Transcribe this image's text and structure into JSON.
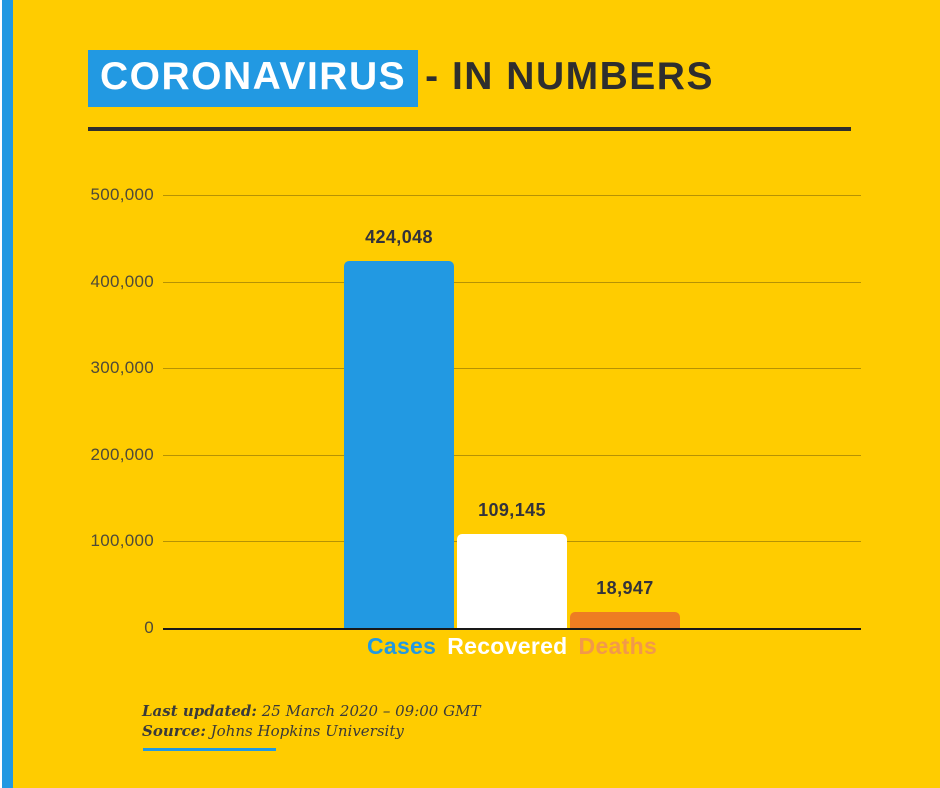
{
  "colors": {
    "background": "#FFCC00",
    "accent_blue": "#2299E2",
    "bar_white": "#FFFFFF",
    "bar_orange": "#EE7D22",
    "legend_orange": "#F2994A",
    "text_dark": "#2E2E2E",
    "tick_text": "#4F4A38"
  },
  "header": {
    "highlight_text": "CORONAVIRUS",
    "rest_text": "- IN NUMBERS"
  },
  "chart_data": {
    "type": "bar",
    "categories": [
      "Cases",
      "Recovered",
      "Deaths"
    ],
    "values": [
      424048,
      109145,
      18947
    ],
    "value_labels": [
      "424,048",
      "109,145",
      "18,947"
    ],
    "bar_colors": [
      "#2299E2",
      "#FFFFFF",
      "#EE7D22"
    ],
    "legend_colors": [
      "#2299E2",
      "#FFFFFF",
      "#F2994A"
    ],
    "title": "CORONAVIRUS - IN NUMBERS",
    "xlabel": "",
    "ylabel": "",
    "ylim": [
      0,
      500000
    ],
    "yticks": [
      0,
      100000,
      200000,
      300000,
      400000,
      500000
    ],
    "ytick_labels": [
      "0",
      "100,000",
      "200,000",
      "300,000",
      "400,000",
      "500,000"
    ],
    "grid": true,
    "legend_position": "bottom"
  },
  "footer": {
    "last_updated_label": "Last updated:",
    "last_updated_value": "25 March 2020 – 09:00 GMT",
    "source_label": "Source:",
    "source_value": "Johns Hopkins University"
  }
}
